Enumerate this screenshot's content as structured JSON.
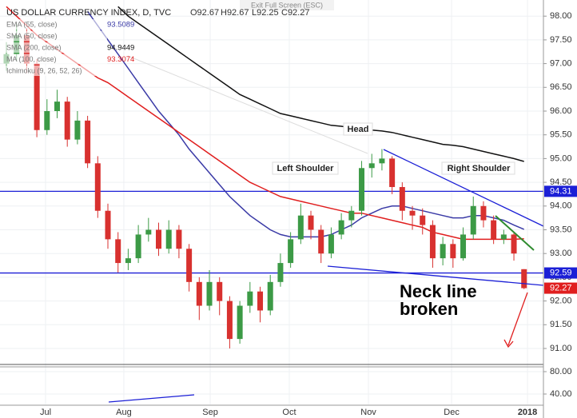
{
  "chart_data": {
    "type": "candlestick",
    "title": "US DOLLAR CURRENCY INDEX, D, TVC",
    "ohlc_legend": [
      "O92.67",
      "H92.67",
      "L92.25",
      "C92.27"
    ],
    "toolbar_text": "Exit Full Screen (ESC)",
    "up_color": "#3c9a46",
    "down_color": "#d8312f",
    "open": [
      97.0,
      97.2,
      97.6,
      97.0,
      95.6,
      96.0,
      96.2,
      95.4,
      95.8,
      94.9,
      93.9,
      93.3,
      92.8,
      92.9,
      93.4,
      93.5,
      93.1,
      93.5,
      93.1,
      92.4,
      91.9,
      92.4,
      92.0,
      91.2,
      91.9,
      92.2,
      91.8,
      92.4,
      92.8,
      93.3,
      93.8,
      93.5,
      93.0,
      93.4,
      93.7,
      93.9,
      94.8,
      94.9,
      95.0,
      94.4,
      93.9,
      93.8,
      93.6,
      92.9,
      93.2,
      92.9,
      93.4,
      94.0,
      93.7,
      93.3,
      93.4,
      92.67
    ],
    "high": [
      97.45,
      97.85,
      97.75,
      97.1,
      96.25,
      96.45,
      96.3,
      96.0,
      95.9,
      95.05,
      94.05,
      93.45,
      93.1,
      93.6,
      93.75,
      93.65,
      93.7,
      93.6,
      93.2,
      92.5,
      92.65,
      92.5,
      92.1,
      92.0,
      92.4,
      92.3,
      92.55,
      93.0,
      93.45,
      94.05,
      93.9,
      93.6,
      93.55,
      93.85,
      94.0,
      94.95,
      95.1,
      95.2,
      95.05,
      94.5,
      94.0,
      93.95,
      93.7,
      93.35,
      93.3,
      93.55,
      94.2,
      94.1,
      93.8,
      93.5,
      93.45,
      92.67
    ],
    "low": [
      96.85,
      97.05,
      96.8,
      95.45,
      95.5,
      95.85,
      95.25,
      95.3,
      94.8,
      93.75,
      93.1,
      92.6,
      92.65,
      92.8,
      93.25,
      92.95,
      93.0,
      92.9,
      92.2,
      91.6,
      91.8,
      91.7,
      91.0,
      91.1,
      91.75,
      91.55,
      91.7,
      92.3,
      92.7,
      93.2,
      93.3,
      92.8,
      92.9,
      93.3,
      93.55,
      93.8,
      94.6,
      94.75,
      94.25,
      93.7,
      93.5,
      93.4,
      92.7,
      92.75,
      92.7,
      92.85,
      93.3,
      93.55,
      93.2,
      93.2,
      92.85,
      92.25
    ],
    "close": [
      97.2,
      97.6,
      97.0,
      95.6,
      96.0,
      96.2,
      95.4,
      95.8,
      94.9,
      93.9,
      93.3,
      92.8,
      92.9,
      93.4,
      93.5,
      93.1,
      93.5,
      93.1,
      92.4,
      91.9,
      92.4,
      92.0,
      91.2,
      91.9,
      92.2,
      91.8,
      92.4,
      92.8,
      93.3,
      93.8,
      93.5,
      93.0,
      93.4,
      93.7,
      93.9,
      94.8,
      94.9,
      95.0,
      94.4,
      93.9,
      93.8,
      93.6,
      92.9,
      93.2,
      92.9,
      93.4,
      94.0,
      93.7,
      93.3,
      93.4,
      93.0,
      92.27
    ],
    "series": [
      {
        "name": "EMA (55, close)",
        "color": "#3a3aa6",
        "last": 93.5089,
        "values": [
          null,
          null,
          null,
          null,
          null,
          null,
          null,
          null,
          98.1,
          97.8,
          97.5,
          97.2,
          96.9,
          96.6,
          96.3,
          96.0,
          95.75,
          95.5,
          95.2,
          94.95,
          94.7,
          94.45,
          94.2,
          94.0,
          93.8,
          93.65,
          93.5,
          93.4,
          93.35,
          93.35,
          93.35,
          93.35,
          93.4,
          93.5,
          93.6,
          93.75,
          93.85,
          93.95,
          94.0,
          94.0,
          93.95,
          93.9,
          93.85,
          93.8,
          93.75,
          93.75,
          93.8,
          93.8,
          93.75,
          93.7,
          93.6,
          93.51
        ]
      },
      {
        "name": "SMA (200, close)",
        "color": "#111111",
        "last": 94.9449,
        "values": [
          null,
          null,
          null,
          null,
          null,
          null,
          null,
          null,
          null,
          null,
          null,
          98.2,
          98.0,
          97.85,
          97.7,
          97.55,
          97.4,
          97.25,
          97.1,
          96.95,
          96.8,
          96.65,
          96.5,
          96.35,
          96.25,
          96.15,
          96.05,
          95.95,
          95.9,
          95.85,
          95.8,
          95.75,
          95.7,
          95.68,
          95.65,
          95.62,
          95.6,
          95.58,
          95.55,
          95.5,
          95.45,
          95.4,
          95.35,
          95.3,
          95.28,
          95.25,
          95.2,
          95.15,
          95.1,
          95.05,
          95.0,
          94.94
        ]
      },
      {
        "name": "MA (100, close)",
        "color": "#e01e1e",
        "last": 93.3074,
        "values": [
          98.2,
          98.0,
          97.8,
          97.6,
          97.45,
          97.3,
          97.15,
          97.0,
          96.85,
          96.7,
          96.6,
          96.45,
          96.3,
          96.15,
          96.0,
          95.85,
          95.7,
          95.55,
          95.4,
          95.25,
          95.1,
          94.95,
          94.8,
          94.65,
          94.5,
          94.4,
          94.3,
          94.2,
          94.15,
          94.1,
          94.05,
          94.0,
          93.95,
          93.9,
          93.85,
          93.85,
          93.8,
          93.75,
          93.7,
          93.65,
          93.6,
          93.55,
          93.45,
          93.4,
          93.35,
          93.3,
          93.3,
          93.3,
          93.3,
          93.3,
          93.3,
          93.31
        ]
      }
    ],
    "other_indicators": [
      "SMA (50, close)",
      "Ichimoku (9, 26, 52, 26)"
    ],
    "levels": [
      {
        "value": 94.31,
        "label": "94.31",
        "color": "#1b1fd6"
      },
      {
        "value": 92.59,
        "label": "92.59",
        "color": "#1b1fd6"
      }
    ],
    "last_price": {
      "value": 92.27,
      "label": "92.27",
      "color": "#e01e1e"
    },
    "xlim": [
      -0.63,
      52.91
    ],
    "xticks": [
      {
        "value": 3.86,
        "label": "Jul"
      },
      {
        "value": 11.57,
        "label": "Aug"
      },
      {
        "value": 20.08,
        "label": "Sep"
      },
      {
        "value": 27.87,
        "label": "Oct"
      },
      {
        "value": 35.67,
        "label": "Nov"
      },
      {
        "value": 43.86,
        "label": "Dec"
      },
      {
        "value": 51.34,
        "label": "2018"
      }
    ],
    "ylim": [
      90.68,
      98.34
    ],
    "yticks": [
      {
        "value": 91,
        "label": "91.00"
      },
      {
        "value": 91.5,
        "label": "91.50"
      },
      {
        "value": 92,
        "label": "92.00"
      },
      {
        "value": 92.5,
        "label": "92.50"
      },
      {
        "value": 93,
        "label": "93.00"
      },
      {
        "value": 93.5,
        "label": "93.50"
      },
      {
        "value": 94,
        "label": "94.00"
      },
      {
        "value": 94.5,
        "label": "94.50"
      },
      {
        "value": 95,
        "label": "95.00"
      },
      {
        "value": 95.5,
        "label": "95.50"
      },
      {
        "value": 96,
        "label": "96.00"
      },
      {
        "value": 96.5,
        "label": "96.50"
      },
      {
        "value": 97,
        "label": "97.00"
      },
      {
        "value": 97.5,
        "label": "97.50"
      },
      {
        "value": 98,
        "label": "98.00"
      }
    ],
    "lower_pane": {
      "ylim": [
        21.4,
        88.6
      ],
      "yticks": [
        {
          "value": 80,
          "label": "80.00"
        },
        {
          "value": 40,
          "label": "40.00"
        }
      ]
    },
    "grid": true,
    "annotations": [
      "Head",
      "Left Shoulder",
      "Right Shoulder",
      "Neck line",
      "broken"
    ]
  }
}
